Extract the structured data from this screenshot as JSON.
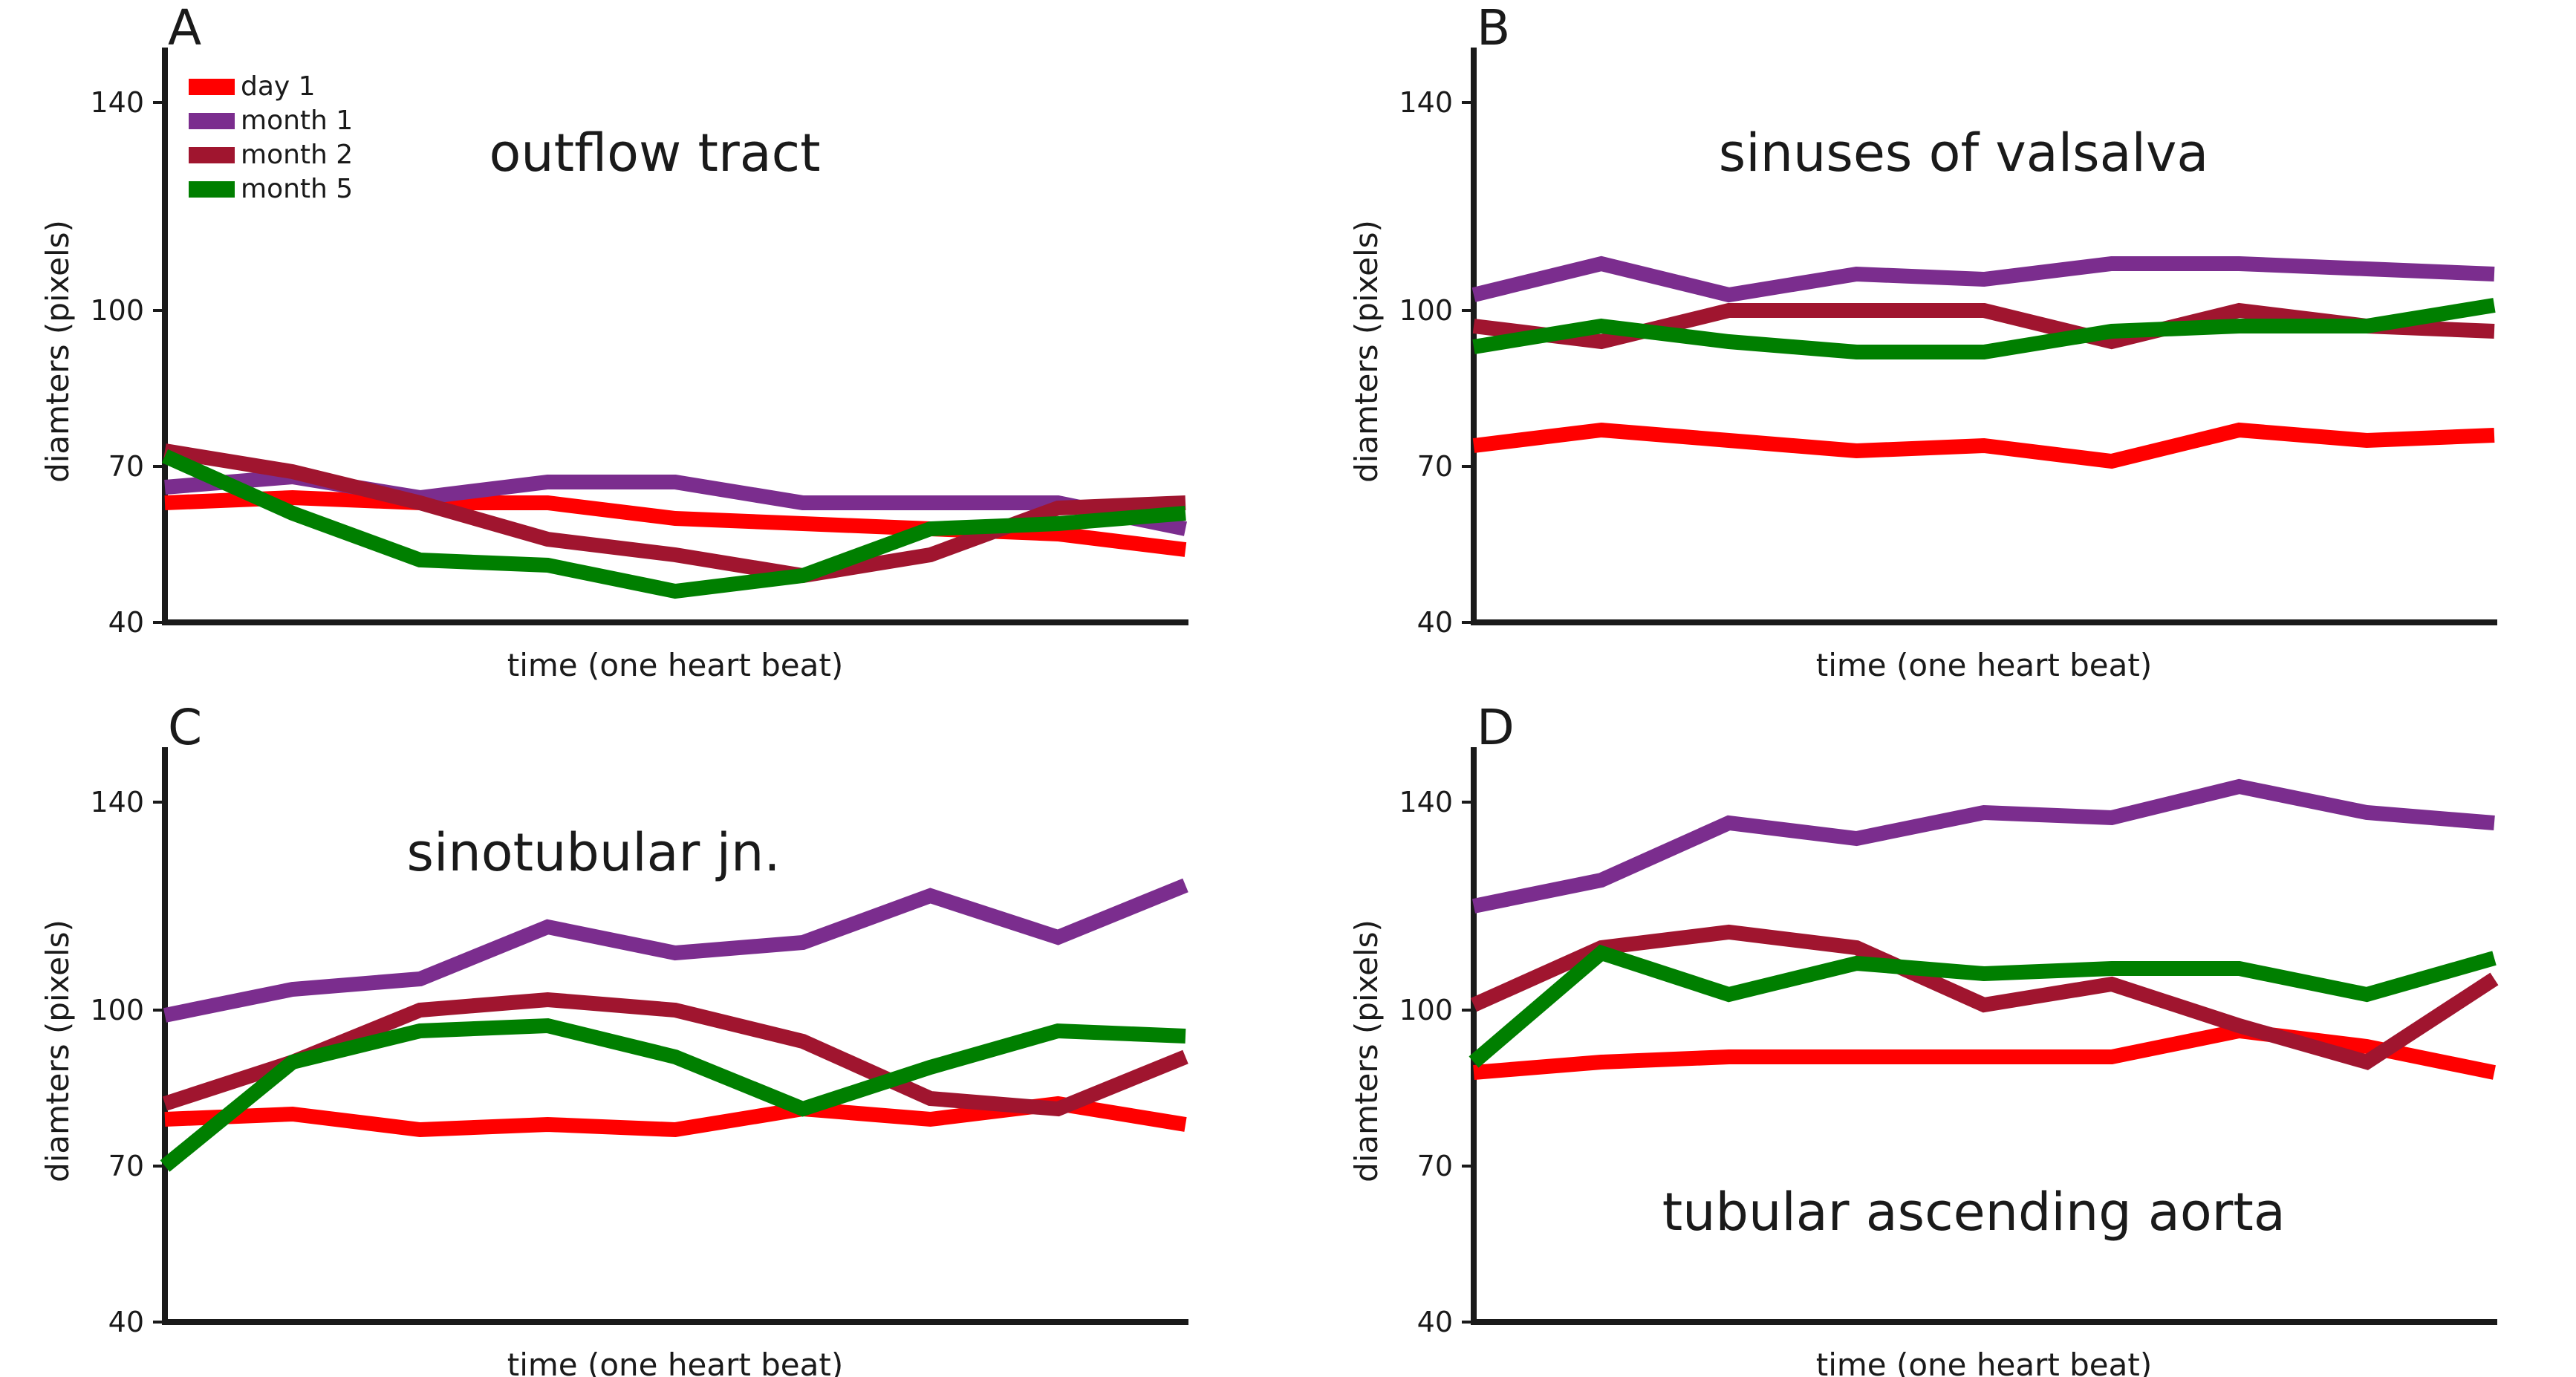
{
  "chart_data": {
    "type": "line",
    "legend": [
      {
        "name": "day 1",
        "color": "#ff0000"
      },
      {
        "name": "month 1",
        "color": "#7b2d8e"
      },
      {
        "name": "month 2",
        "color": "#a0152f"
      },
      {
        "name": "month 5",
        "color": "#007f00"
      }
    ],
    "legend_position": "top-left",
    "panels": [
      {
        "letter": "A",
        "title": "outflow tract",
        "title_position": "top-center",
        "xlabel": "time (one heart beat)",
        "ylabel": "diamters (pixels)",
        "yticks": [
          40,
          70,
          100,
          140
        ],
        "ylim": [
          40,
          150
        ],
        "x": [
          0,
          1,
          2,
          3,
          4,
          5,
          6,
          7,
          8
        ],
        "series": [
          {
            "name": "day 1",
            "values": [
              63,
              64,
              63,
              63,
              60,
              59,
              58,
              57,
              54
            ]
          },
          {
            "name": "month 1",
            "values": [
              66,
              68,
              64,
              67,
              67,
              63,
              63,
              63,
              58
            ]
          },
          {
            "name": "month 2",
            "values": [
              73,
              69,
              63,
              56,
              53,
              49,
              53,
              62,
              63
            ]
          },
          {
            "name": "month 5",
            "values": [
              72,
              61,
              52,
              51,
              46,
              49,
              58,
              59,
              61
            ]
          }
        ]
      },
      {
        "letter": "B",
        "title": "sinuses of valsalva",
        "title_position": "top-center",
        "xlabel": "time (one heart beat)",
        "ylabel": "diamters (pixels)",
        "yticks": [
          40,
          70,
          100,
          140
        ],
        "ylim": [
          40,
          150
        ],
        "x": [
          0,
          1,
          2,
          3,
          4,
          5,
          6,
          7,
          8
        ],
        "series": [
          {
            "name": "day 1",
            "values": [
              74,
              77,
              75,
              73,
              74,
              71,
              77,
              75,
              76
            ]
          },
          {
            "name": "month 1",
            "values": [
              103,
              109,
              103,
              107,
              106,
              109,
              109,
              108,
              107
            ]
          },
          {
            "name": "month 2",
            "values": [
              97,
              94,
              100,
              100,
              100,
              94,
              100,
              97,
              96
            ]
          },
          {
            "name": "month 5",
            "values": [
              93,
              97,
              94,
              92,
              92,
              96,
              97,
              97,
              101
            ]
          }
        ]
      },
      {
        "letter": "C",
        "title": "sinotubular jn.",
        "title_position": "top-center",
        "xlabel": "time (one heart beat)",
        "ylabel": "diamters (pixels)",
        "yticks": [
          40,
          70,
          100,
          140
        ],
        "ylim": [
          40,
          150
        ],
        "x": [
          0,
          1,
          2,
          3,
          4,
          5,
          6,
          7,
          8
        ],
        "series": [
          {
            "name": "day 1",
            "values": [
              79,
              80,
              77,
              78,
              77,
              81,
              79,
              82,
              78
            ]
          },
          {
            "name": "month 1",
            "values": [
              99,
              104,
              106,
              116,
              111,
              113,
              122,
              114,
              124
            ]
          },
          {
            "name": "month 2",
            "values": [
              82,
              90,
              100,
              102,
              100,
              94,
              83,
              81,
              91
            ]
          },
          {
            "name": "month 5",
            "values": [
              70,
              90,
              96,
              97,
              91,
              81,
              89,
              96,
              95
            ]
          }
        ]
      },
      {
        "letter": "D",
        "title": "tubular ascending aorta",
        "title_position": "bottom-center",
        "xlabel": "time (one heart beat)",
        "ylabel": "diamters (pixels)",
        "yticks": [
          40,
          70,
          100,
          140
        ],
        "ylim": [
          40,
          150
        ],
        "x": [
          0,
          1,
          2,
          3,
          4,
          5,
          6,
          7,
          8
        ],
        "series": [
          {
            "name": "day 1",
            "values": [
              88,
              90,
              91,
              91,
              91,
              91,
              96,
              93,
              88
            ]
          },
          {
            "name": "month 1",
            "values": [
              120,
              125,
              136,
              133,
              138,
              137,
              143,
              138,
              136
            ]
          },
          {
            "name": "month 2",
            "values": [
              101,
              112,
              115,
              112,
              101,
              105,
              97,
              90,
              106
            ]
          },
          {
            "name": "month 5",
            "values": [
              90,
              111,
              103,
              109,
              107,
              108,
              108,
              103,
              110
            ]
          }
        ]
      }
    ]
  }
}
